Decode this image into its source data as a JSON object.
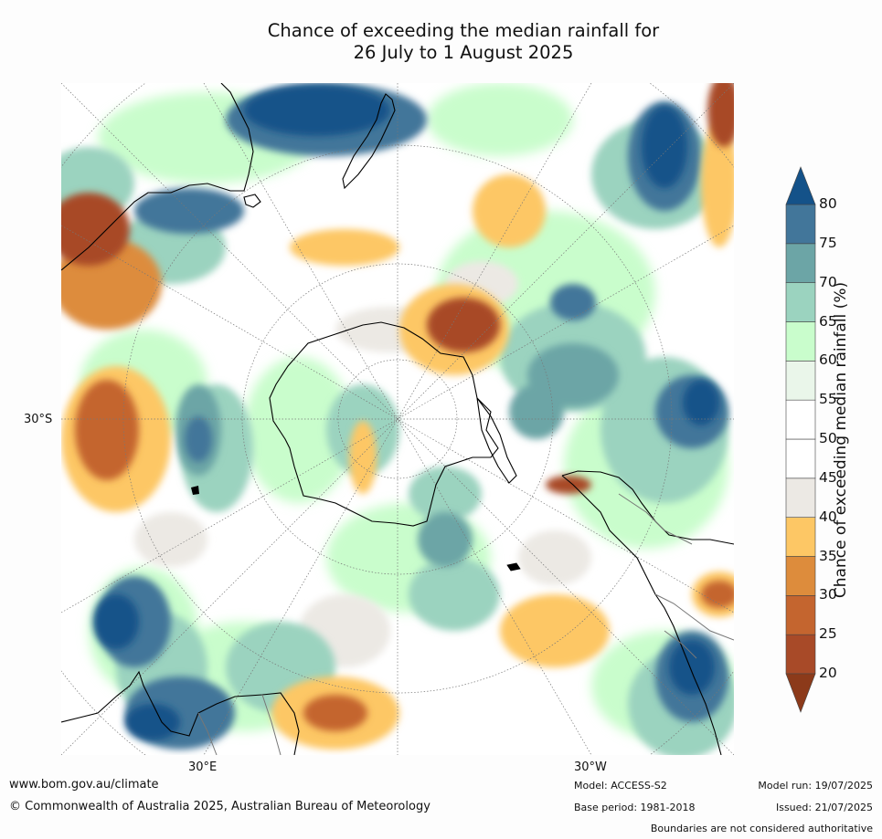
{
  "title": {
    "line1": "Chance of exceeding the median rainfall for",
    "line2": "26 July to 1 August 2025"
  },
  "axis_labels": {
    "lat_30s": "30°S",
    "lon_30e": "30°E",
    "lon_30w": "30°W"
  },
  "colorbar": {
    "label": "Chance of exceeding median rainfall (%)",
    "ticks": [
      "20",
      "25",
      "30",
      "35",
      "40",
      "45",
      "50",
      "55",
      "60",
      "65",
      "70",
      "75",
      "80"
    ],
    "colors": [
      "#8c3a1a",
      "#a84a28",
      "#c4652f",
      "#dd8c3c",
      "#fdc765",
      "#ece9e4",
      "#ffffff",
      "#ffffff",
      "#eaf6ea",
      "#c9fdcc",
      "#9bd3bf",
      "#6ca5a6",
      "#42769a",
      "#145289"
    ]
  },
  "footer": {
    "website": "www.bom.gov.au/climate",
    "copyright": "© Commonwealth of Australia 2025, Australian Bureau of Meteorology",
    "model": "Model: ACCESS-S2",
    "base_period": "Base period: 1981-2018",
    "model_run": "Model run: 19/07/2025",
    "issued": "Issued: 21/07/2025",
    "disclaimer": "Boundaries are not considered authoritative"
  }
}
